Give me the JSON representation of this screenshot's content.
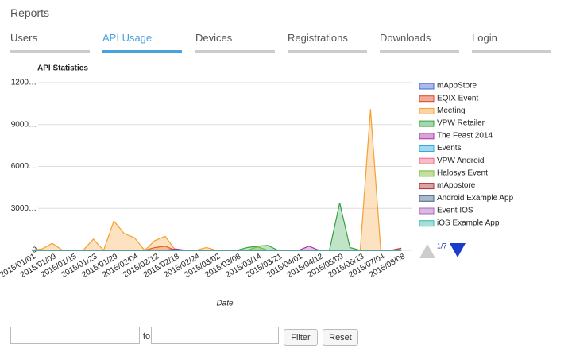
{
  "header": {
    "title": "Reports"
  },
  "tabs": [
    "Users",
    "API Usage",
    "Devices",
    "Registrations",
    "Downloads",
    "Login"
  ],
  "chart_data": {
    "type": "area",
    "title": "API Statistics",
    "x_label": "Date",
    "categories": [
      "2015/01/01",
      null,
      "2015/01/09",
      null,
      "2015/01/15",
      null,
      "2015/01/23",
      null,
      "2015/01/29",
      null,
      "2015/02/04",
      null,
      "2015/02/12",
      null,
      "2015/02/18",
      null,
      "2015/02/24",
      null,
      "2015/03/02",
      null,
      "2015/03/08",
      null,
      "2015/03/14",
      null,
      "2015/03/21",
      null,
      "2015/04/01",
      null,
      "2015/04/12",
      null,
      "2015/05/09",
      null,
      "2015/06/13",
      null,
      "2015/07/04",
      null,
      "2015/08/08"
    ],
    "ylim": [
      0,
      12000
    ],
    "yticks": [
      0,
      {
        "value": 3000,
        "label": "3000…"
      },
      {
        "value": 6000,
        "label": "6000…"
      },
      {
        "value": 9000,
        "label": "9000…"
      },
      {
        "value": 12000,
        "label": "1200…"
      }
    ],
    "grid": true,
    "series": [
      {
        "name": "mAppStore",
        "color": "#4466cc",
        "values": [
          0,
          0,
          0,
          0,
          0,
          0,
          0,
          0,
          0,
          0,
          0,
          0,
          0,
          0,
          0,
          0,
          0,
          0,
          0,
          0,
          0,
          0,
          0,
          0,
          0,
          0,
          0,
          0,
          0,
          0,
          0,
          0,
          0,
          0,
          0,
          0,
          0
        ]
      },
      {
        "name": "EQIX Event",
        "color": "#dd4422",
        "values": [
          0,
          0,
          0,
          0,
          0,
          0,
          0,
          0,
          0,
          0,
          0,
          0,
          200,
          300,
          0,
          0,
          0,
          0,
          0,
          0,
          0,
          0,
          0,
          0,
          0,
          0,
          0,
          0,
          0,
          0,
          0,
          0,
          0,
          0,
          0,
          0,
          0
        ]
      },
      {
        "name": "Meeting",
        "color": "#f5a033",
        "values": [
          0,
          100,
          500,
          0,
          0,
          0,
          800,
          0,
          2100,
          1200,
          900,
          0,
          700,
          1000,
          0,
          0,
          0,
          200,
          0,
          0,
          0,
          0,
          0,
          0,
          0,
          0,
          0,
          0,
          0,
          0,
          0,
          0,
          0,
          10100,
          0,
          0,
          0
        ]
      },
      {
        "name": "VPW Retailer",
        "color": "#33a344",
        "values": [
          0,
          0,
          0,
          0,
          0,
          0,
          0,
          0,
          0,
          0,
          0,
          0,
          0,
          0,
          0,
          0,
          0,
          0,
          0,
          0,
          0,
          200,
          300,
          350,
          0,
          0,
          0,
          0,
          0,
          0,
          3400,
          200,
          0,
          0,
          0,
          0,
          0
        ]
      },
      {
        "name": "The Feast 2014",
        "color": "#aa33aa",
        "values": [
          0,
          0,
          0,
          0,
          0,
          0,
          0,
          0,
          0,
          0,
          0,
          0,
          0,
          0,
          100,
          0,
          0,
          0,
          0,
          0,
          0,
          0,
          0,
          0,
          0,
          0,
          0,
          300,
          0,
          0,
          0,
          0,
          0,
          0,
          0,
          0,
          0
        ]
      },
      {
        "name": "Events",
        "color": "#33aadd",
        "values": [
          0,
          0,
          0,
          0,
          0,
          0,
          0,
          0,
          0,
          0,
          0,
          0,
          0,
          0,
          0,
          0,
          0,
          0,
          0,
          0,
          0,
          0,
          0,
          0,
          0,
          0,
          0,
          0,
          0,
          0,
          0,
          0,
          0,
          0,
          0,
          0,
          0
        ]
      },
      {
        "name": "VPW Android",
        "color": "#ee6688",
        "values": [
          0,
          0,
          0,
          0,
          0,
          0,
          0,
          0,
          0,
          0,
          0,
          0,
          0,
          0,
          0,
          0,
          0,
          0,
          0,
          0,
          0,
          0,
          0,
          0,
          0,
          0,
          0,
          0,
          0,
          0,
          0,
          0,
          0,
          0,
          0,
          0,
          0
        ]
      },
      {
        "name": "Halosys Event",
        "color": "#77bb33",
        "values": [
          0,
          0,
          0,
          0,
          0,
          0,
          0,
          0,
          0,
          0,
          0,
          0,
          0,
          0,
          0,
          0,
          0,
          0,
          0,
          0,
          0,
          0,
          250,
          0,
          0,
          0,
          0,
          0,
          0,
          0,
          0,
          0,
          0,
          0,
          0,
          0,
          0
        ]
      },
      {
        "name": "mAppstore",
        "color": "#aa3333",
        "values": [
          0,
          0,
          0,
          0,
          0,
          0,
          0,
          0,
          0,
          0,
          0,
          0,
          0,
          0,
          0,
          0,
          0,
          0,
          0,
          0,
          0,
          0,
          0,
          0,
          0,
          0,
          0,
          0,
          0,
          0,
          0,
          0,
          0,
          0,
          0,
          0,
          150
        ]
      },
      {
        "name": "Android Example App",
        "color": "#446688",
        "values": [
          0,
          0,
          0,
          0,
          0,
          0,
          0,
          0,
          0,
          0,
          0,
          0,
          0,
          0,
          0,
          0,
          0,
          0,
          0,
          0,
          0,
          0,
          0,
          0,
          0,
          0,
          0,
          0,
          0,
          0,
          0,
          0,
          0,
          0,
          0,
          0,
          0
        ]
      },
      {
        "name": "Event IOS",
        "color": "#aa66bb",
        "values": [
          0,
          0,
          0,
          0,
          0,
          0,
          0,
          0,
          0,
          0,
          0,
          0,
          0,
          0,
          0,
          0,
          0,
          0,
          0,
          0,
          0,
          0,
          0,
          0,
          0,
          0,
          0,
          0,
          0,
          0,
          0,
          0,
          0,
          0,
          0,
          0,
          0
        ]
      },
      {
        "name": "iOS Example App",
        "color": "#33bbaa",
        "values": [
          0,
          0,
          0,
          0,
          0,
          0,
          0,
          0,
          0,
          0,
          0,
          0,
          0,
          0,
          0,
          0,
          0,
          0,
          0,
          0,
          0,
          0,
          0,
          0,
          0,
          0,
          0,
          0,
          0,
          0,
          0,
          0,
          0,
          0,
          0,
          0,
          0
        ]
      }
    ],
    "pager": "1/7"
  },
  "form": {
    "separator": "to",
    "buttons": [
      "Filter",
      "Reset"
    ]
  }
}
